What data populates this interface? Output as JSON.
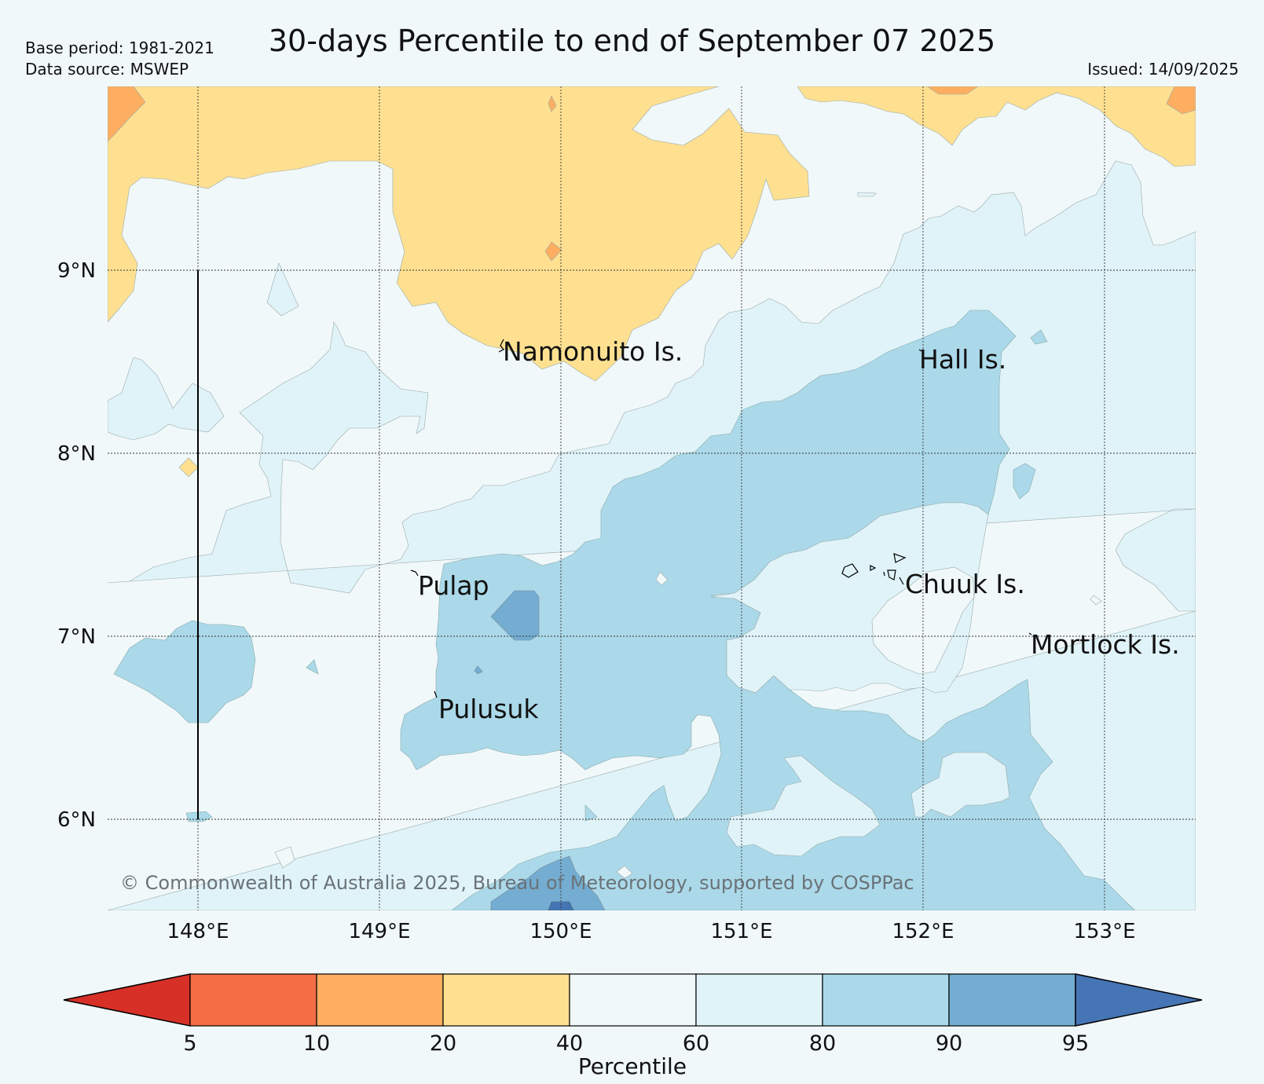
{
  "header": {
    "base_period": "Base period: 1981-2021",
    "data_source": "Data source: MSWEP",
    "title": "30-days Percentile to end of September 07 2025",
    "issued": "Issued: 14/09/2025"
  },
  "map": {
    "lat_labels": [
      "9°N",
      "8°N",
      "7°N",
      "6°N"
    ],
    "lon_labels": [
      "148°E",
      "149°E",
      "150°E",
      "151°E",
      "152°E",
      "153°E"
    ],
    "places": [
      {
        "name": "Namonuito Is."
      },
      {
        "name": "Hall Is."
      },
      {
        "name": "Pulap"
      },
      {
        "name": "Chuuk Is."
      },
      {
        "name": "Mortlock Is."
      },
      {
        "name": "Pulusuk"
      }
    ],
    "copyright": "© Commonwealth of Australia 2025, Bureau of Meteorology, supported by COSPPac"
  },
  "colorbar": {
    "title": "Percentile",
    "ticks": [
      "5",
      "10",
      "20",
      "40",
      "60",
      "80",
      "90",
      "95"
    ],
    "colors": [
      "#d73027",
      "#f46d43",
      "#fdae61",
      "#fee090",
      "#f1f8fa",
      "#e0f3f8",
      "#abd9e9",
      "#74add1",
      "#4575b4"
    ]
  }
}
